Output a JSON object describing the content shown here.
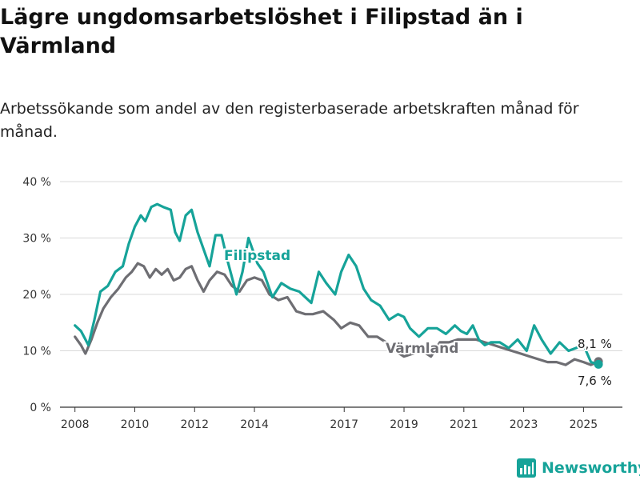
{
  "title": "Lägre ungdomsarbetslöshet i Filipstad än i Värmland",
  "subtitle": "Arbetssökande som andel av den registerbaserade arbetskraften månad för månad.",
  "brand": {
    "name": "Newsworthy",
    "color": "#16a399"
  },
  "chart_data": {
    "type": "line",
    "xlabel": "",
    "ylabel": "",
    "xlim": [
      2007.5,
      2026.3
    ],
    "ylim": [
      0,
      40
    ],
    "y_ticks": [
      0,
      10,
      20,
      30,
      40
    ],
    "y_tick_labels": [
      "0 %",
      "10 %",
      "20 %",
      "30 %",
      "40 %"
    ],
    "x_ticks": [
      2008,
      2010,
      2012,
      2014,
      2017,
      2019,
      2021,
      2023,
      2025
    ],
    "x_tick_labels": [
      "2008",
      "2010",
      "2012",
      "2014",
      "2017",
      "2019",
      "2021",
      "2023",
      "2025"
    ],
    "grid": true,
    "series": [
      {
        "name": "Filipstad",
        "color": "#16a399",
        "end_label": "7,6 %",
        "x": [
          2008.0,
          2008.2,
          2008.45,
          2008.65,
          2008.85,
          2009.1,
          2009.35,
          2009.6,
          2009.8,
          2010.0,
          2010.2,
          2010.35,
          2010.55,
          2010.75,
          2010.95,
          2011.2,
          2011.35,
          2011.5,
          2011.7,
          2011.9,
          2012.1,
          2012.3,
          2012.5,
          2012.7,
          2012.9,
          2013.1,
          2013.4,
          2013.6,
          2013.8,
          2014.1,
          2014.3,
          2014.6,
          2014.9,
          2015.2,
          2015.5,
          2015.9,
          2016.15,
          2016.4,
          2016.7,
          2016.9,
          2017.15,
          2017.4,
          2017.65,
          2017.9,
          2018.2,
          2018.5,
          2018.8,
          2019.0,
          2019.2,
          2019.5,
          2019.8,
          2020.1,
          2020.4,
          2020.7,
          2020.9,
          2021.1,
          2021.3,
          2021.5,
          2021.7,
          2021.9,
          2022.2,
          2022.5,
          2022.8,
          2023.1,
          2023.35,
          2023.6,
          2023.9,
          2024.2,
          2024.5,
          2024.75,
          2025.0,
          2025.25,
          2025.5
        ],
        "values": [
          14.5,
          13.5,
          11.0,
          15.5,
          20.5,
          21.5,
          24.0,
          25.0,
          29.0,
          32.0,
          34.0,
          33.0,
          35.5,
          36.0,
          35.5,
          35.0,
          31.0,
          29.5,
          34.0,
          35.0,
          31.0,
          28.0,
          25.0,
          30.5,
          30.5,
          26.0,
          20.0,
          24.0,
          30.0,
          25.5,
          24.0,
          19.5,
          22.0,
          21.0,
          20.5,
          18.5,
          24.0,
          22.0,
          20.0,
          24.0,
          27.0,
          25.0,
          21.0,
          19.0,
          18.0,
          15.5,
          16.5,
          16.0,
          14.0,
          12.5,
          14.0,
          14.0,
          13.0,
          14.5,
          13.5,
          13.0,
          14.5,
          12.0,
          11.0,
          11.5,
          11.5,
          10.5,
          12.0,
          10.0,
          14.5,
          12.0,
          9.5,
          11.5,
          10.0,
          10.5,
          11.0,
          8.0,
          7.6
        ]
      },
      {
        "name": "Värmland",
        "color": "#6e6e73",
        "end_label": "8,1 %",
        "x": [
          2008.0,
          2008.2,
          2008.35,
          2008.55,
          2008.75,
          2008.95,
          2009.2,
          2009.45,
          2009.7,
          2009.9,
          2010.1,
          2010.3,
          2010.5,
          2010.7,
          2010.9,
          2011.1,
          2011.3,
          2011.5,
          2011.7,
          2011.9,
          2012.1,
          2012.3,
          2012.5,
          2012.75,
          2013.0,
          2013.25,
          2013.5,
          2013.75,
          2014.0,
          2014.25,
          2014.5,
          2014.8,
          2015.1,
          2015.4,
          2015.7,
          2015.95,
          2016.3,
          2016.65,
          2016.9,
          2017.2,
          2017.5,
          2017.8,
          2018.1,
          2018.4,
          2018.7,
          2019.0,
          2019.3,
          2019.6,
          2019.9,
          2020.2,
          2020.5,
          2020.8,
          2021.1,
          2021.4,
          2021.7,
          2022.0,
          2022.3,
          2022.6,
          2022.9,
          2023.2,
          2023.5,
          2023.8,
          2024.1,
          2024.4,
          2024.7,
          2025.0,
          2025.25,
          2025.5
        ],
        "values": [
          12.5,
          11.0,
          9.5,
          12.0,
          15.0,
          17.5,
          19.5,
          21.0,
          23.0,
          24.0,
          25.5,
          25.0,
          23.0,
          24.5,
          23.5,
          24.5,
          22.5,
          23.0,
          24.5,
          25.0,
          22.5,
          20.5,
          22.5,
          24.0,
          23.5,
          21.5,
          20.5,
          22.5,
          23.0,
          22.5,
          20.0,
          19.0,
          19.5,
          17.0,
          16.5,
          16.5,
          17.0,
          15.5,
          14.0,
          15.0,
          14.5,
          12.5,
          12.5,
          11.5,
          10.0,
          9.0,
          9.5,
          10.0,
          9.0,
          11.5,
          11.5,
          12.0,
          12.0,
          12.0,
          11.5,
          11.0,
          10.5,
          10.0,
          9.5,
          9.0,
          8.5,
          8.0,
          8.0,
          7.5,
          8.5,
          8.0,
          7.5,
          8.1
        ]
      }
    ]
  }
}
